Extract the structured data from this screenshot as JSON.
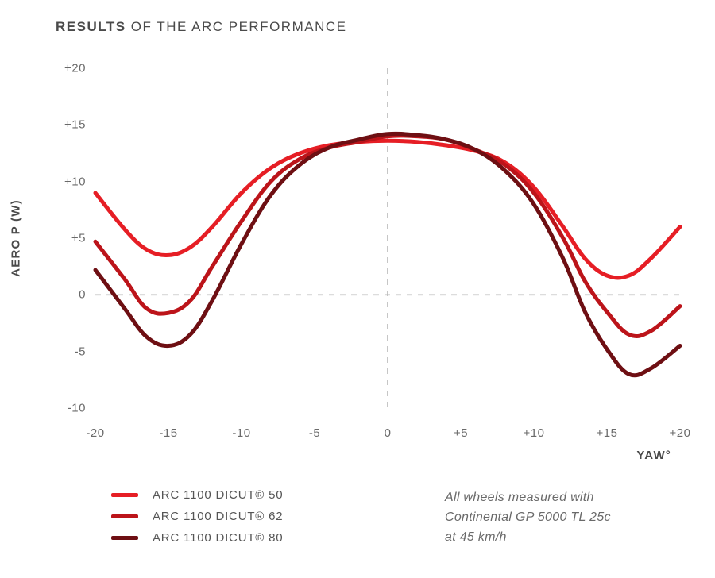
{
  "title_bold": "RESULTS",
  "title_light": " OF THE ARC PERFORMANCE",
  "ylabel": "AERO P (W)",
  "xlabel": "YAW°",
  "chart": {
    "type": "line",
    "background_color": "#ffffff",
    "grid_color": "#b8b8b8",
    "grid_dash": "7,7",
    "axis_font_size": 15,
    "line_width": 5,
    "xlim": [
      -20,
      20
    ],
    "ylim": [
      -10,
      20
    ],
    "xticks": [
      {
        "v": -20,
        "label": "-20"
      },
      {
        "v": -15,
        "label": "-15"
      },
      {
        "v": -10,
        "label": "-10"
      },
      {
        "v": -5,
        "label": "-5"
      },
      {
        "v": 0,
        "label": "0"
      },
      {
        "v": 5,
        "label": "+5"
      },
      {
        "v": 10,
        "label": "+10"
      },
      {
        "v": 15,
        "label": "+15"
      },
      {
        "v": 20,
        "label": "+20"
      }
    ],
    "yticks": [
      {
        "v": 20,
        "label": "+20"
      },
      {
        "v": 15,
        "label": "+15"
      },
      {
        "v": 10,
        "label": "+10"
      },
      {
        "v": 5,
        "label": "+5"
      },
      {
        "v": 0,
        "label": "0"
      },
      {
        "v": -5,
        "label": "-5"
      },
      {
        "v": -10,
        "label": "-10"
      }
    ],
    "series": [
      {
        "name": "ARC 1100 DICUT® 50",
        "color": "#e61e25",
        "x": [
          -20,
          -18,
          -16.5,
          -15,
          -13.5,
          -12,
          -10,
          -8,
          -6,
          -4,
          -2,
          0,
          2,
          4,
          6,
          8,
          10,
          12,
          13.5,
          15,
          16.5,
          18,
          20
        ],
        "y": [
          9.0,
          5.8,
          4.0,
          3.5,
          4.2,
          6.0,
          9.0,
          11.2,
          12.5,
          13.2,
          13.5,
          13.6,
          13.5,
          13.2,
          12.7,
          11.7,
          9.5,
          6.0,
          3.2,
          1.7,
          1.7,
          3.2,
          6.0
        ]
      },
      {
        "name": "ARC 1100 DICUT® 62",
        "color": "#bc141a",
        "x": [
          -20,
          -18,
          -16.5,
          -15,
          -13.5,
          -12,
          -10,
          -8,
          -6,
          -4,
          -2,
          0,
          2,
          4,
          6,
          8,
          10,
          12,
          13.5,
          15,
          16.5,
          18,
          20
        ],
        "y": [
          4.7,
          1.4,
          -1.2,
          -1.6,
          -0.5,
          2.5,
          6.5,
          10.0,
          12.0,
          13.0,
          13.5,
          14.0,
          14.0,
          13.7,
          12.8,
          11.5,
          9.0,
          5.0,
          1.2,
          -1.5,
          -3.5,
          -3.2,
          -1.0
        ]
      },
      {
        "name": "ARC 1100 DICUT® 80",
        "color": "#6e0f13",
        "x": [
          -20,
          -18,
          -16.5,
          -15,
          -13.5,
          -12,
          -10,
          -8,
          -6,
          -4,
          -2,
          0,
          2,
          4,
          6,
          8,
          10,
          12,
          13.5,
          15,
          16.5,
          18,
          20
        ],
        "y": [
          2.2,
          -1.2,
          -3.7,
          -4.5,
          -3.5,
          -0.5,
          4.5,
          8.8,
          11.5,
          13.0,
          13.7,
          14.2,
          14.1,
          13.7,
          12.8,
          11.0,
          8.0,
          3.2,
          -1.5,
          -4.8,
          -7.0,
          -6.5,
          -4.5
        ]
      }
    ]
  },
  "legend": [
    {
      "label": "ARC 1100 DICUT® 50",
      "color": "#e61e25"
    },
    {
      "label": "ARC 1100 DICUT® 62",
      "color": "#bc141a"
    },
    {
      "label": "ARC 1100 DICUT® 80",
      "color": "#6e0f13"
    }
  ],
  "note_line1": "All wheels measured with",
  "note_line2": "Continental GP 5000 TL 25c",
  "note_line3": "at 45 km/h"
}
